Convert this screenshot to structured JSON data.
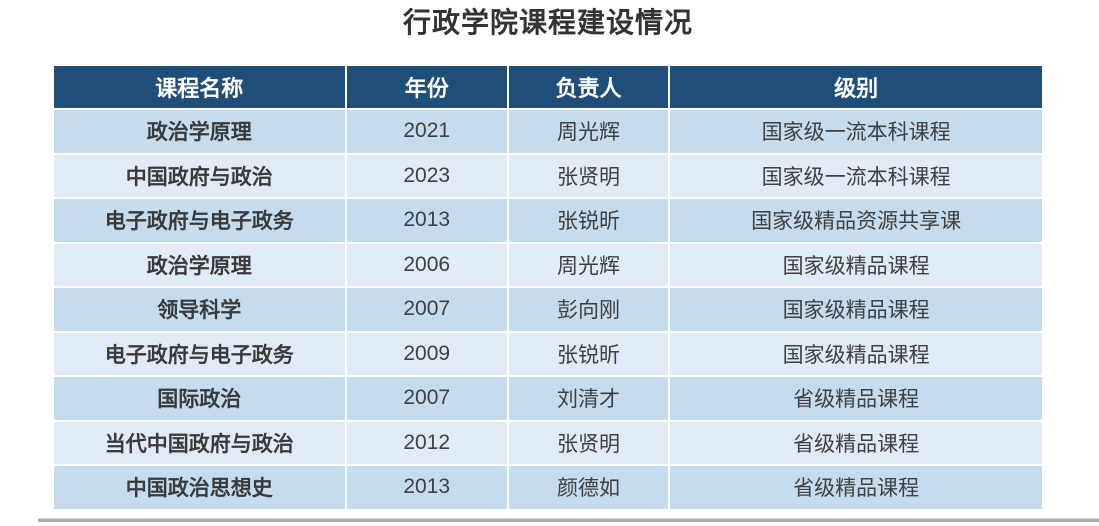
{
  "title": "行政学院课程建设情况",
  "colors": {
    "header_bg": "#1F4E79",
    "header_text": "#FFFFFF",
    "row_odd_bg": "#C5DBEE",
    "row_even_bg": "#E1EBF7",
    "title_text": "#333333",
    "cell_text": "#404040",
    "bottom_rule": "#ABABAB"
  },
  "table": {
    "headers": [
      "课程名称",
      "年份",
      "负责人",
      "级别"
    ],
    "rows": [
      {
        "name": "政治学原理",
        "year": "2021",
        "leader": "周光辉",
        "level": "国家级一流本科课程"
      },
      {
        "name": "中国政府与政治",
        "year": "2023",
        "leader": "张贤明",
        "level": "国家级一流本科课程"
      },
      {
        "name": "电子政府与电子政务",
        "year": "2013",
        "leader": "张锐昕",
        "level": "国家级精品资源共享课"
      },
      {
        "name": "政治学原理",
        "year": "2006",
        "leader": "周光辉",
        "level": "国家级精品课程"
      },
      {
        "name": "领导科学",
        "year": "2007",
        "leader": "彭向刚",
        "level": "国家级精品课程"
      },
      {
        "name": "电子政府与电子政务",
        "year": "2009",
        "leader": "张锐昕",
        "level": "国家级精品课程"
      },
      {
        "name": "国际政治",
        "year": "2007",
        "leader": "刘清才",
        "level": "省级精品课程"
      },
      {
        "name": "当代中国政府与政治",
        "year": "2012",
        "leader": "张贤明",
        "level": "省级精品课程"
      },
      {
        "name": "中国政治思想史",
        "year": "2013",
        "leader": "颜德如",
        "level": "省级精品课程"
      }
    ]
  },
  "chart_data": {
    "type": "table",
    "title": "行政学院课程建设情况",
    "columns": [
      "课程名称",
      "年份",
      "负责人",
      "级别"
    ],
    "rows": [
      [
        "政治学原理",
        "2021",
        "周光辉",
        "国家级一流本科课程"
      ],
      [
        "中国政府与政治",
        "2023",
        "张贤明",
        "国家级一流本科课程"
      ],
      [
        "电子政府与电子政务",
        "2013",
        "张锐昕",
        "国家级精品资源共享课"
      ],
      [
        "政治学原理",
        "2006",
        "周光辉",
        "国家级精品课程"
      ],
      [
        "领导科学",
        "2007",
        "彭向刚",
        "国家级精品课程"
      ],
      [
        "电子政府与电子政务",
        "2009",
        "张锐昕",
        "国家级精品课程"
      ],
      [
        "国际政治",
        "2007",
        "刘清才",
        "省级精品课程"
      ],
      [
        "当代中国政府与政治",
        "2012",
        "张贤明",
        "省级精品课程"
      ],
      [
        "中国政治思想史",
        "2013",
        "颜德如",
        "省级精品课程"
      ]
    ]
  }
}
